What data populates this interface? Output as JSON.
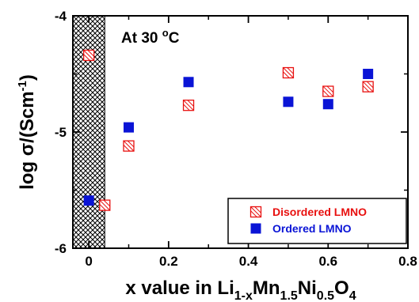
{
  "chart_data": {
    "type": "scatter",
    "xlabel": {
      "main": "x value in Li",
      "sub1": "1-x",
      "mid1": "Mn",
      "sub2": "1.5",
      "mid2": "Ni",
      "sub3": "0.5",
      "mid3": "O",
      "sub4": "4"
    },
    "ylabel": {
      "main": "log σ/(Scm",
      "sup": "-1",
      "close": ")"
    },
    "xlim": [
      -0.04,
      0.8
    ],
    "ylim": [
      -6,
      -4
    ],
    "x_ticks": [
      "0",
      "0.2",
      "0.4",
      "0.6",
      "0.8"
    ],
    "y_ticks": [
      "-4",
      "-5",
      "-6"
    ],
    "annotation": {
      "text": "At 30 ",
      "sup": "o",
      "unit": "C"
    },
    "shaded_region": {
      "x_from": -0.04,
      "x_to": 0.04,
      "pattern": "crosshatch"
    },
    "series": [
      {
        "name": "Disordered LMNO",
        "color": "#e8100f",
        "marker": "hatched-open-square",
        "x": [
          0,
          0.04,
          0.1,
          0.25,
          0.5,
          0.6,
          0.7
        ],
        "y": [
          -4.34,
          -5.63,
          -5.12,
          -4.77,
          -4.49,
          -4.65,
          -4.61
        ]
      },
      {
        "name": "Ordered LMNO",
        "color": "#0a14d6",
        "marker": "filled-square",
        "x": [
          0,
          0.1,
          0.25,
          0.5,
          0.6,
          0.7
        ],
        "y": [
          -5.59,
          -4.96,
          -4.57,
          -4.74,
          -4.76,
          -4.5
        ]
      }
    ],
    "legend": {
      "placement": "bottom-right"
    }
  }
}
